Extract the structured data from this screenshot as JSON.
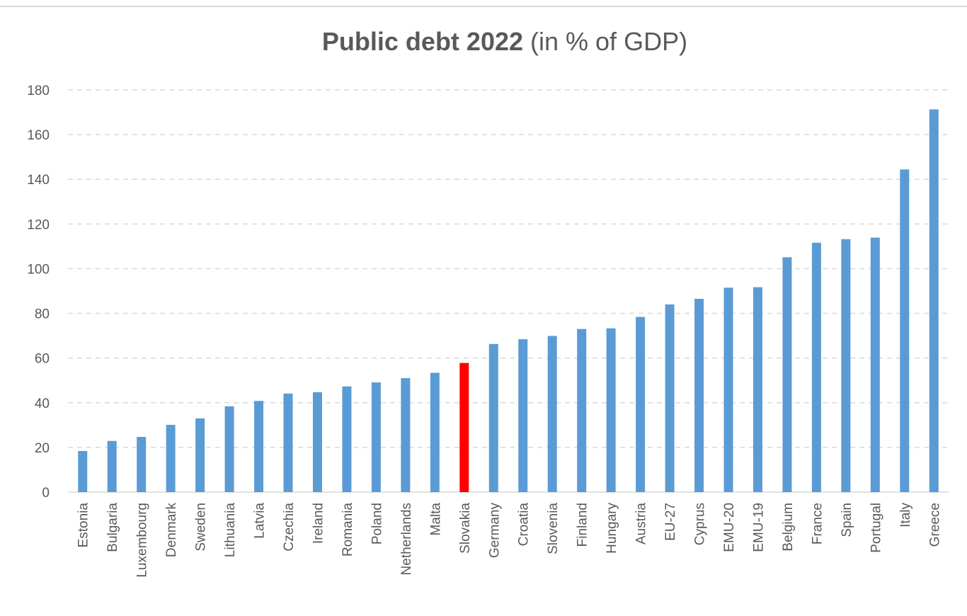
{
  "chart_data": {
    "type": "bar",
    "title_bold": "Public debt 2022",
    "title_normal": " (in % of GDP)",
    "xlabel": "",
    "ylabel": "",
    "ylim": [
      0,
      180
    ],
    "yticks": [
      "0",
      "20",
      "40",
      "60",
      "80",
      "100",
      "120",
      "140",
      "160",
      "180"
    ],
    "grid": "horizontal dashed",
    "legend": "none",
    "categories": [
      "Estonia",
      "Bulgaria",
      "Luxembourg",
      "Denmark",
      "Sweden",
      "Lithuania",
      "Latvia",
      "Czechia",
      "Ireland",
      "Romania",
      "Poland",
      "Netherlands",
      "Malta",
      "Slovakia",
      "Germany",
      "Croatia",
      "Slovenia",
      "Finland",
      "Hungary",
      "Austria",
      "EU-27",
      "Cyprus",
      "EMU-20",
      "EMU-19",
      "Belgium",
      "France",
      "Spain",
      "Portugal",
      "Italy",
      "Greece"
    ],
    "values": [
      18.4,
      22.9,
      24.7,
      30.1,
      33.0,
      38.4,
      40.8,
      44.1,
      44.7,
      47.3,
      49.1,
      51.0,
      53.4,
      57.8,
      66.3,
      68.4,
      69.9,
      73.0,
      73.3,
      78.4,
      84.0,
      86.5,
      91.5,
      91.7,
      105.1,
      111.6,
      113.2,
      113.9,
      144.4,
      171.3
    ],
    "highlight": "Slovakia"
  },
  "colors": {
    "bar": "#5b9bd5",
    "highlight": "#ff0000",
    "grid": "#d9d9d9",
    "axis": "#d9d9d9",
    "text": "#595959"
  }
}
